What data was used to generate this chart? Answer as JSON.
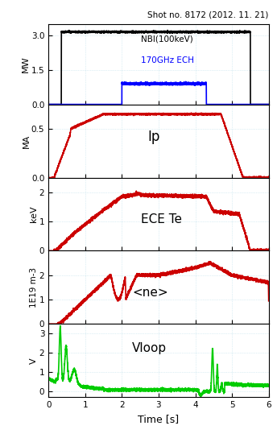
{
  "title": "Shot no. 8172 (2012. 11. 21)",
  "xlabel": "Time [s]",
  "xmin": 0,
  "xmax": 6,
  "panels": [
    {
      "ylabel": "MW",
      "ylim": [
        0.0,
        3.5
      ],
      "yticks": [
        0.0,
        1.5,
        3.0
      ],
      "label": "NBI(100keV)",
      "label2": "170GHz ECH"
    },
    {
      "ylabel": "MA",
      "ylim": [
        0.0,
        0.75
      ],
      "yticks": [
        0.0,
        0.5
      ],
      "label": "Ip"
    },
    {
      "ylabel": "keV",
      "ylim": [
        0,
        2.5
      ],
      "yticks": [
        0,
        1,
        2
      ],
      "label": "ECE Te"
    },
    {
      "ylabel": "1E19 m-3",
      "ylim": [
        0,
        3
      ],
      "yticks": [
        0,
        1,
        2
      ],
      "label": "<ne>"
    },
    {
      "ylabel": "V",
      "ylim": [
        -0.3,
        3.5
      ],
      "yticks": [
        0,
        1,
        2,
        3
      ],
      "label": "Vloop"
    }
  ],
  "nbi_color": "#000000",
  "ech_color": "#0000ff",
  "red_color": "#cc0000",
  "green_color": "#00cc00",
  "grid_color": "#add8e6"
}
